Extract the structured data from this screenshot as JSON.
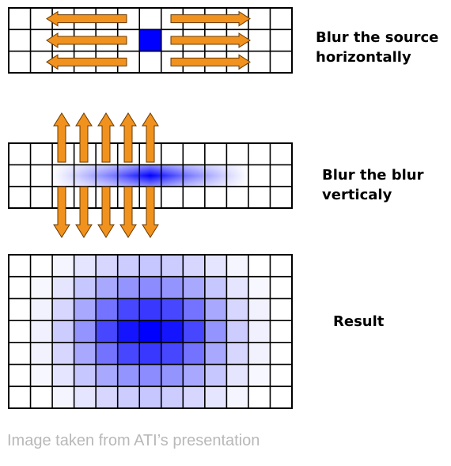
{
  "steps": [
    {
      "label_lines": [
        "Blur the source",
        "horizontally"
      ]
    },
    {
      "label_lines": [
        "Blur the blur",
        "verticaly"
      ]
    },
    {
      "label_lines": [
        "Result"
      ]
    }
  ],
  "credit": "Image taken from ATI’s presentation",
  "colors": {
    "grid_line": "#000000",
    "blur_blue": "#0000ff",
    "arrow_fill": "#f0921d",
    "arrow_stroke": "#6b3a00",
    "credit_text": "#b8b8b8"
  },
  "grid_size": {
    "top_columns": 13,
    "top_rows": 3,
    "result_columns": 13,
    "result_rows": 7
  },
  "result_intensity_rows": [
    [
      0,
      0,
      0.04,
      0.1,
      0.16,
      0.2,
      0.22,
      0.2,
      0.16,
      0.1,
      0.04,
      0,
      0
    ],
    [
      0,
      0.03,
      0.1,
      0.22,
      0.34,
      0.42,
      0.45,
      0.42,
      0.34,
      0.22,
      0.1,
      0.03,
      0
    ],
    [
      0,
      0.05,
      0.16,
      0.34,
      0.55,
      0.72,
      0.78,
      0.72,
      0.55,
      0.34,
      0.16,
      0.05,
      0
    ],
    [
      0,
      0.06,
      0.2,
      0.42,
      0.72,
      0.92,
      1.0,
      0.92,
      0.72,
      0.42,
      0.2,
      0.06,
      0
    ],
    [
      0,
      0.05,
      0.16,
      0.34,
      0.55,
      0.72,
      0.78,
      0.72,
      0.55,
      0.34,
      0.16,
      0.05,
      0
    ],
    [
      0,
      0.03,
      0.1,
      0.22,
      0.34,
      0.42,
      0.45,
      0.42,
      0.34,
      0.22,
      0.1,
      0.03,
      0
    ],
    [
      0,
      0,
      0.04,
      0.1,
      0.16,
      0.2,
      0.22,
      0.2,
      0.16,
      0.1,
      0.04,
      0,
      0
    ]
  ],
  "icons": {
    "horizontal_arrows": "double-headed-arrow-horizontal-icon",
    "vertical_arrows": "arrow-vertical-icon"
  }
}
